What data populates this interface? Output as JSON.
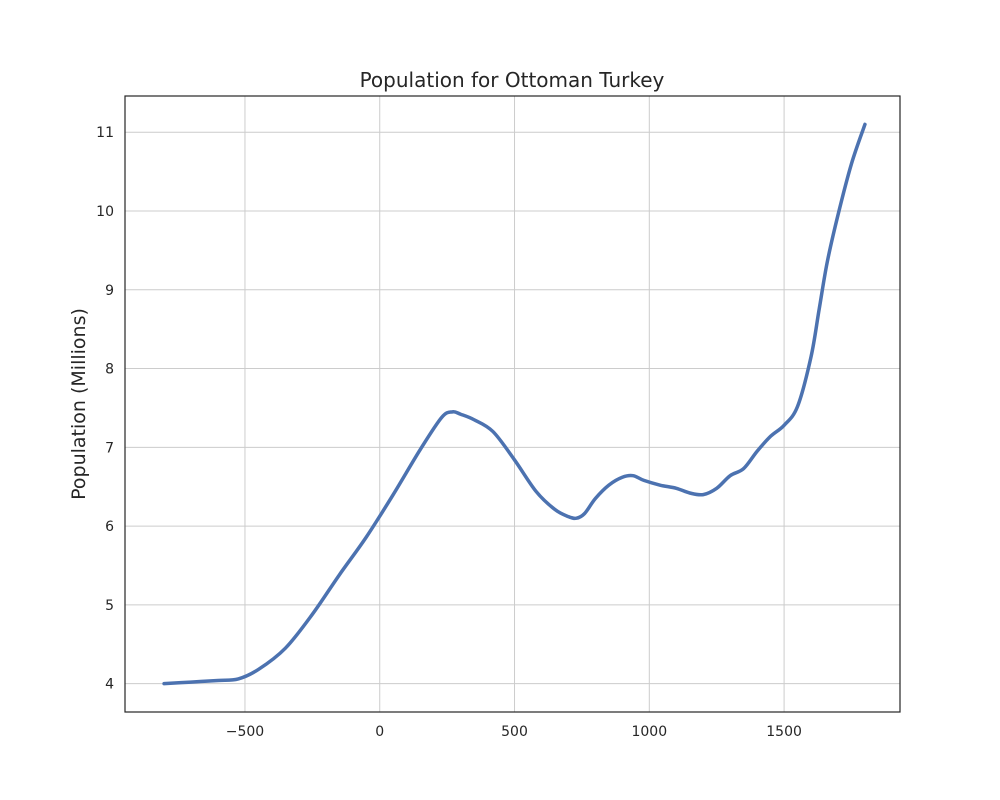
{
  "chart_data": {
    "type": "line",
    "title": "Population for Ottoman Turkey",
    "xlabel": "",
    "ylabel": "Population (Millions)",
    "xlim": [
      -945,
      1930
    ],
    "ylim": [
      3.64,
      11.46
    ],
    "xticks": [
      -500,
      0,
      500,
      1000,
      1500
    ],
    "yticks": [
      4,
      5,
      6,
      7,
      8,
      9,
      10,
      11
    ],
    "grid": true,
    "color": "#4c72b0",
    "series": [
      {
        "x": [
          -800,
          -700,
          -600,
          -525,
          -450,
          -350,
          -250,
          -150,
          -50,
          50,
          150,
          230,
          270,
          300,
          350,
          420,
          500,
          580,
          650,
          700,
          730,
          760,
          800,
          850,
          900,
          940,
          980,
          1040,
          1100,
          1150,
          1200,
          1250,
          1300,
          1350,
          1400,
          1450,
          1500,
          1550,
          1600,
          1630,
          1660,
          1700,
          1750,
          1800
        ],
        "values": [
          4.0,
          4.02,
          4.04,
          4.06,
          4.18,
          4.45,
          4.88,
          5.38,
          5.86,
          6.4,
          6.97,
          7.38,
          7.45,
          7.42,
          7.35,
          7.2,
          6.84,
          6.44,
          6.21,
          6.12,
          6.1,
          6.16,
          6.35,
          6.52,
          6.62,
          6.64,
          6.58,
          6.52,
          6.48,
          6.42,
          6.4,
          6.48,
          6.64,
          6.73,
          6.95,
          7.14,
          7.28,
          7.52,
          8.15,
          8.75,
          9.35,
          9.95,
          10.6,
          11.1
        ]
      }
    ]
  }
}
